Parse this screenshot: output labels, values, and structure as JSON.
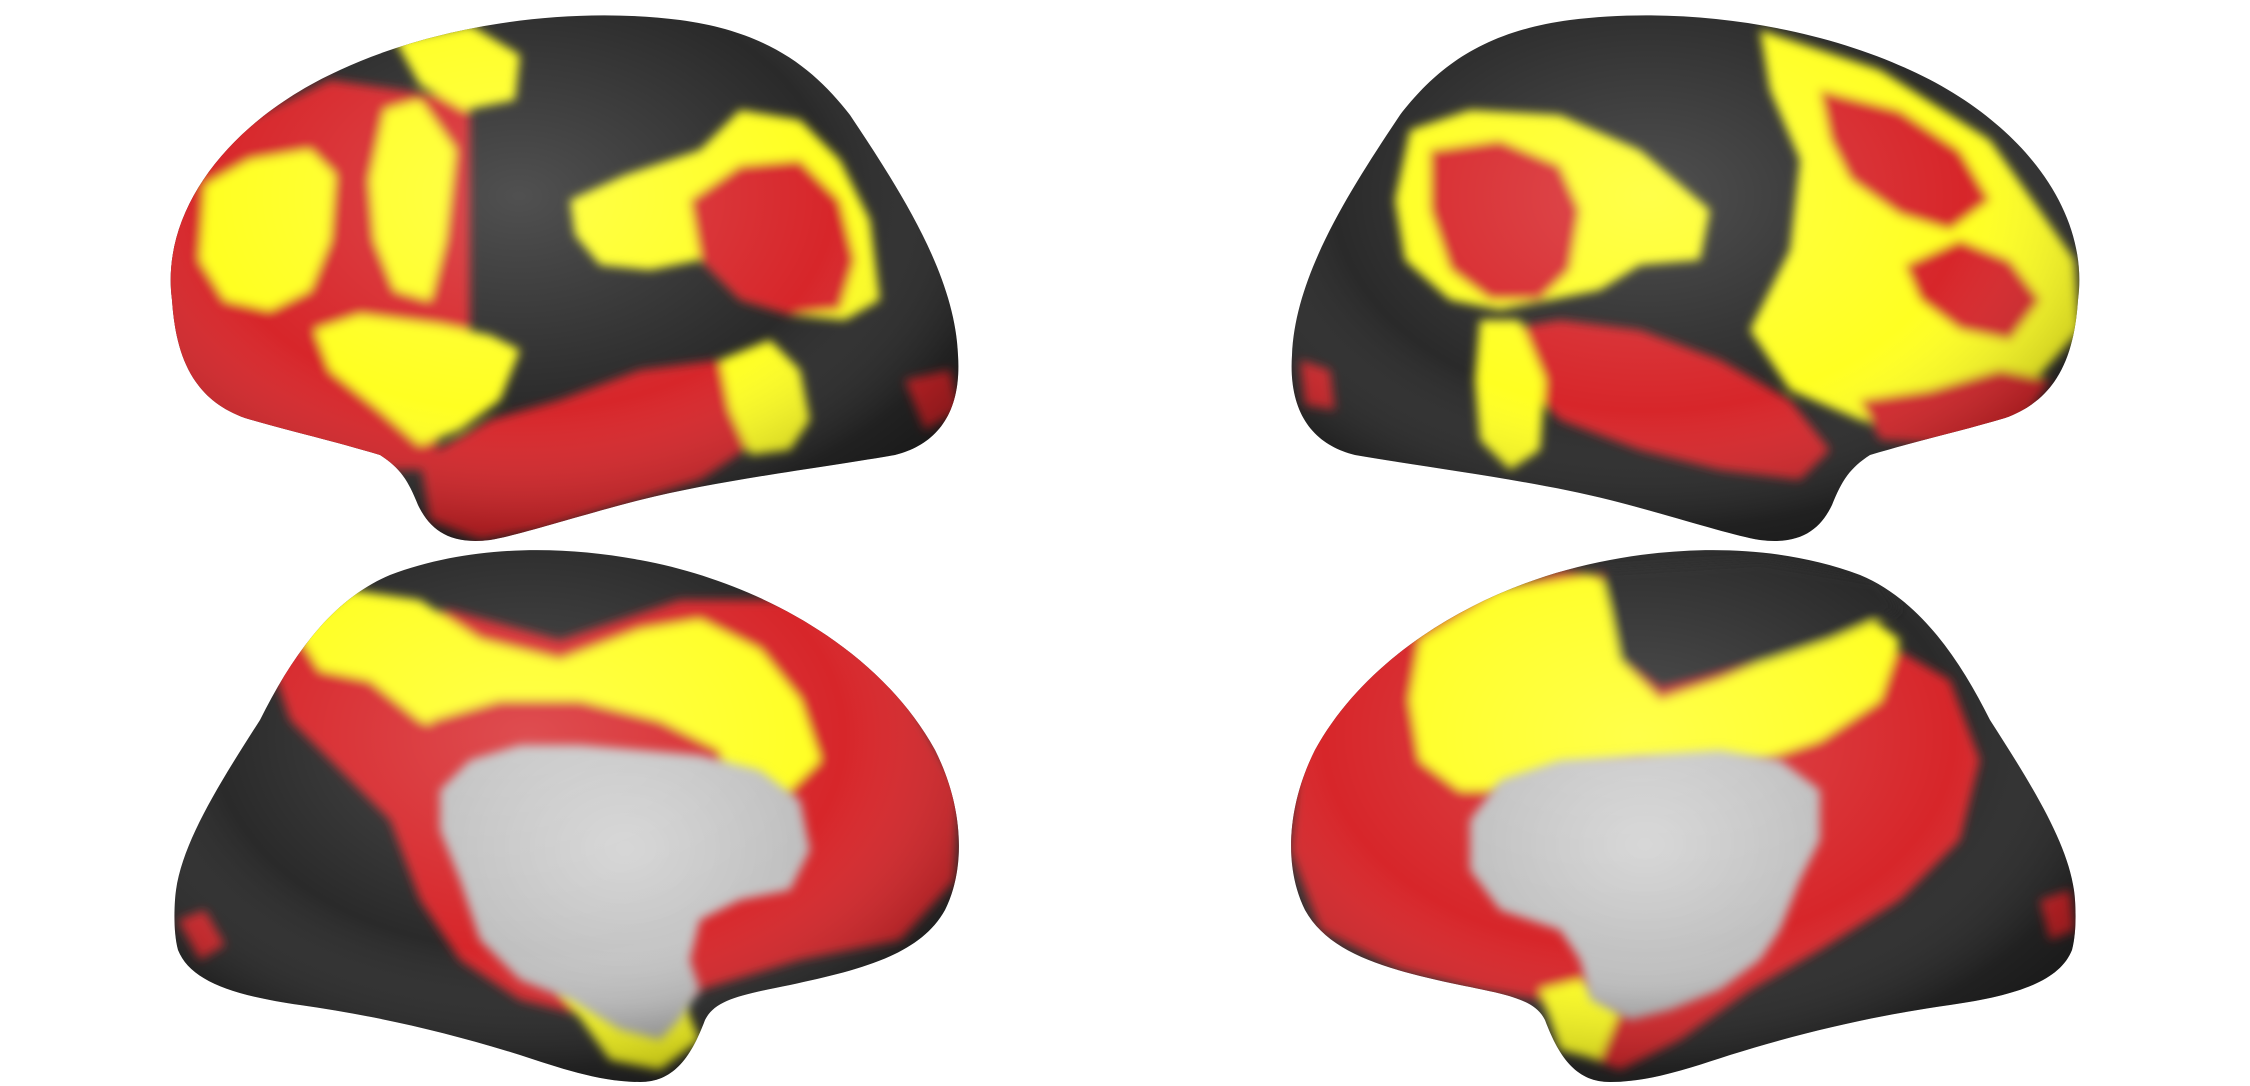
{
  "figure": {
    "background": "#ffffff",
    "colors": {
      "dark": "#2a2a2a",
      "red": "#d7282b",
      "yellow": "#ffff22",
      "medial_wall": "#c6c6c6"
    },
    "panels": [
      {
        "id": "left-lateral",
        "view": "lateral",
        "hemisphere": "left"
      },
      {
        "id": "right-lateral",
        "view": "lateral",
        "hemisphere": "right"
      },
      {
        "id": "left-medial",
        "view": "medial",
        "hemisphere": "left"
      },
      {
        "id": "right-medial",
        "view": "medial",
        "hemisphere": "right"
      }
    ]
  }
}
